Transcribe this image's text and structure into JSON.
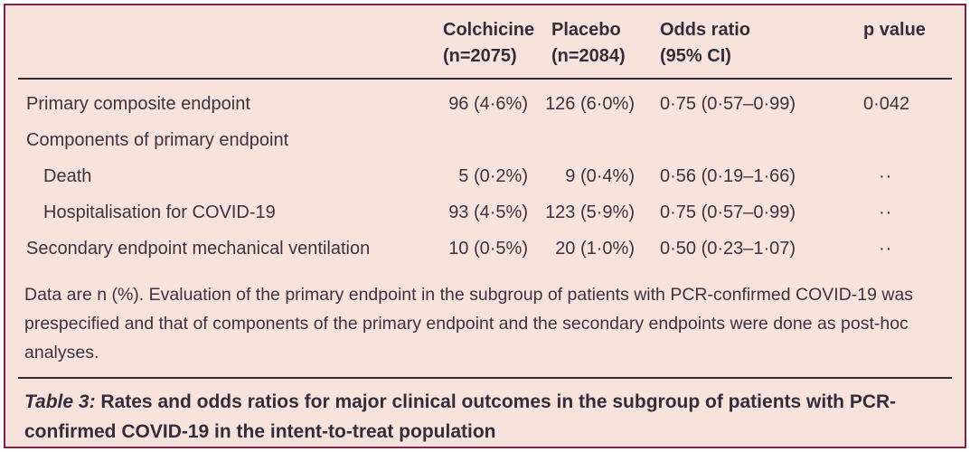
{
  "colors": {
    "panel_background": "#f8e2dc",
    "panel_border": "#7e2147",
    "rule": "#2d2a32",
    "text": "#3a3342"
  },
  "table": {
    "columns": [
      {
        "label": "",
        "sub": ""
      },
      {
        "label": "Colchicine",
        "sub": "(n=2075)"
      },
      {
        "label": "Placebo",
        "sub": "(n=2084)"
      },
      {
        "label": "Odds ratio",
        "sub": "(95% CI)"
      },
      {
        "label": "p value",
        "sub": ""
      }
    ],
    "rows": [
      {
        "label": "Primary composite endpoint",
        "colchicine": "96 (4·6%)",
        "placebo": "126 (6·0%)",
        "odds_ratio": "0·75 (0·57–0·99)",
        "p_value": "0·042"
      },
      {
        "label": "Components of primary endpoint",
        "colchicine": "",
        "placebo": "",
        "odds_ratio": "",
        "p_value": ""
      },
      {
        "label": "Death",
        "colchicine": "5 (0·2%)",
        "placebo": "9 (0·4%)",
        "odds_ratio": "0·56 (0·19–1·66)",
        "p_value": "··"
      },
      {
        "label": "Hospitalisation for COVID-19",
        "colchicine": "93 (4·5%)",
        "placebo": "123 (5·9%)",
        "odds_ratio": "0·75 (0·57–0·99)",
        "p_value": "··"
      },
      {
        "label": "Secondary endpoint mechanical ventilation",
        "colchicine": "10 (0·5%)",
        "placebo": "20 (1·0%)",
        "odds_ratio": "0·50 (0·23–1·07)",
        "p_value": "··"
      }
    ]
  },
  "footnote": "Data are n (%). Evaluation of the primary endpoint in the subgroup of patients with PCR-confirmed COVID-19 was prespecified and that of components of the primary endpoint and the secondary endpoints were done as post-hoc analyses.",
  "caption": {
    "label": "Table 3:",
    "text": " Rates and odds ratios for major clinical outcomes in the subgroup of patients with PCR-confirmed COVID-19 in the intent-to-treat population"
  }
}
